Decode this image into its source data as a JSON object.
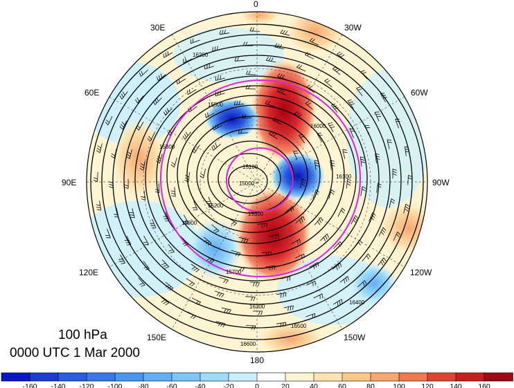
{
  "map": {
    "projection": "north-polar-stereographic",
    "field_overlay": "geopotential height contours with wind barbs",
    "contour_values": [
      "15000",
      "15100",
      "15200",
      "15300",
      "15500",
      "15700",
      "15800",
      "15900",
      "16000",
      "16100",
      "16200",
      "16300",
      "16400",
      "16500",
      "16600"
    ],
    "longitude_labels": [
      "0",
      "30W",
      "60W",
      "90W",
      "120W",
      "150W",
      "180",
      "150E",
      "120E",
      "90E",
      "60E",
      "30E"
    ],
    "contour_color": "#000000",
    "circle_color": "#e020e0"
  },
  "caption": {
    "level": "100 hPa",
    "time": "0000 UTC 1 Mar 2000"
  },
  "colorbar": {
    "labels": [
      "-160",
      "-140",
      "-120",
      "-100",
      "-80",
      "-60",
      "-40",
      "-20",
      "0",
      "20",
      "40",
      "60",
      "80",
      "100",
      "120",
      "140",
      "160"
    ],
    "colors": [
      "#0a14c8",
      "#1e3cd2",
      "#2a5ce0",
      "#3a78ea",
      "#4a95f0",
      "#62aef4",
      "#7cc6f8",
      "#9edcfc",
      "#c8f0ff",
      "#ffffff",
      "#fff4d2",
      "#fde4b0",
      "#fbc88a",
      "#f7a870",
      "#f07850",
      "#e04430",
      "#c81e20",
      "#a00a14"
    ]
  }
}
